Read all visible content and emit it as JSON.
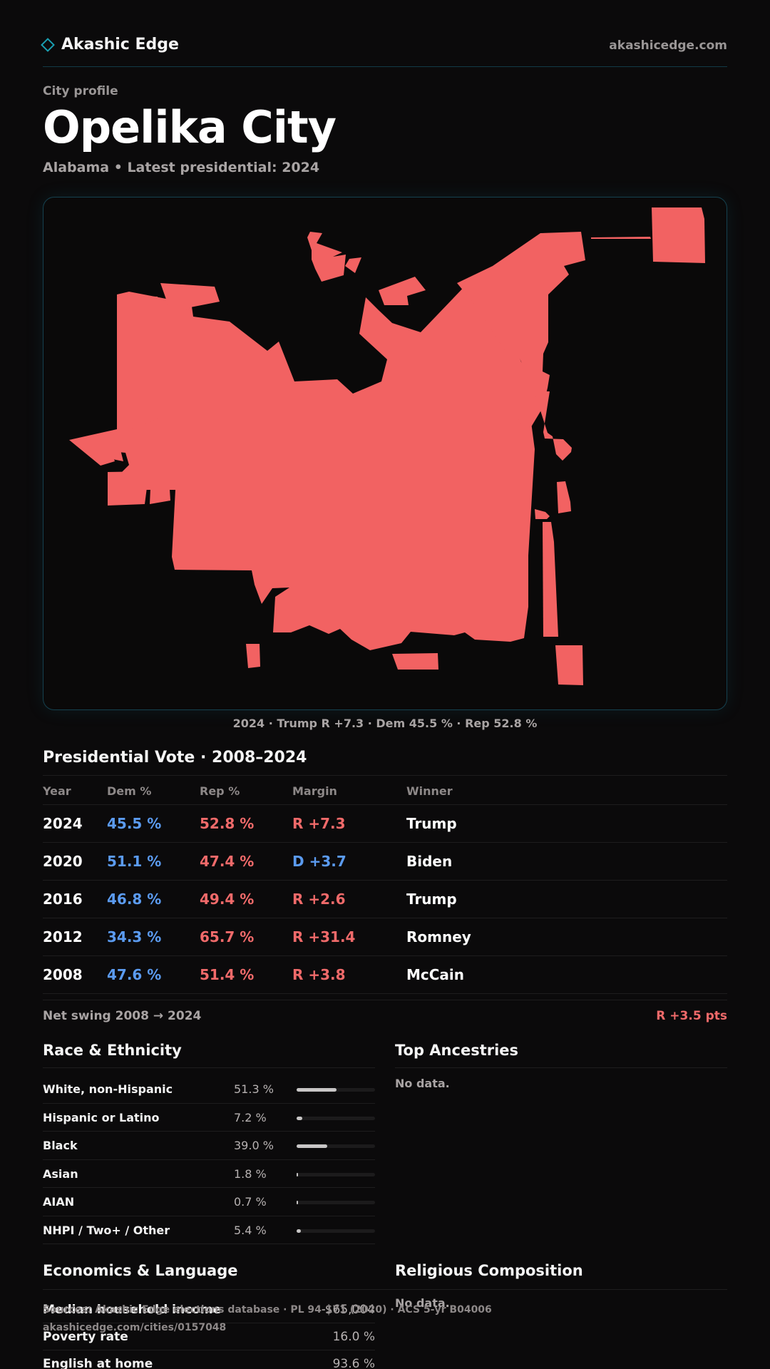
{
  "header": {
    "brand": "Akashic Edge",
    "domain": "akashicedge.com"
  },
  "profile": {
    "eyebrow": "City profile",
    "title": "Opelika City",
    "subtitle": "Alabama • Latest presidential: 2024"
  },
  "map": {
    "fill_color": "#f26262",
    "caption": "2024 · Trump R +7.3 · Dem 45.5 % · Rep 52.8 %"
  },
  "presidential": {
    "title": "Presidential Vote · 2008–2024",
    "columns": [
      "Year",
      "Dem %",
      "Rep %",
      "Margin",
      "Winner"
    ],
    "rows": [
      {
        "year": "2024",
        "dem": "45.5 %",
        "rep": "52.8 %",
        "margin": "R +7.3",
        "margin_party": "rep",
        "winner": "Trump"
      },
      {
        "year": "2020",
        "dem": "51.1 %",
        "rep": "47.4 %",
        "margin": "D +3.7",
        "margin_party": "dem",
        "winner": "Biden"
      },
      {
        "year": "2016",
        "dem": "46.8 %",
        "rep": "49.4 %",
        "margin": "R +2.6",
        "margin_party": "rep",
        "winner": "Trump"
      },
      {
        "year": "2012",
        "dem": "34.3 %",
        "rep": "65.7 %",
        "margin": "R +31.4",
        "margin_party": "rep",
        "winner": "Romney"
      },
      {
        "year": "2008",
        "dem": "47.6 %",
        "rep": "51.4 %",
        "margin": "R +3.8",
        "margin_party": "rep",
        "winner": "McCain"
      }
    ],
    "swing_label": "Net swing 2008 → 2024",
    "swing_value": "R +3.5 pts"
  },
  "race": {
    "title": "Race & Ethnicity",
    "rows": [
      {
        "label": "White, non-Hispanic",
        "pct": "51.3 %",
        "value": 51.3
      },
      {
        "label": "Hispanic or Latino",
        "pct": "7.2 %",
        "value": 7.2
      },
      {
        "label": "Black",
        "pct": "39.0 %",
        "value": 39.0
      },
      {
        "label": "Asian",
        "pct": "1.8 %",
        "value": 1.8
      },
      {
        "label": "AIAN",
        "pct": "0.7 %",
        "value": 0.7
      },
      {
        "label": "NHPI / Two+ / Other",
        "pct": "5.4 %",
        "value": 5.4
      }
    ]
  },
  "ancestries": {
    "title": "Top Ancestries",
    "empty": "No data."
  },
  "economics": {
    "title": "Economics & Language",
    "rows": [
      {
        "label": "Median household income",
        "value": "$65,004"
      },
      {
        "label": "Poverty rate",
        "value": "16.0 %"
      },
      {
        "label": "English at home",
        "value": "93.6 %"
      }
    ]
  },
  "religion": {
    "title": "Religious Composition",
    "empty": "No data."
  },
  "footer": {
    "sources": "Sources: Akashic Edge elections database · PL 94-171 (2020) · ACS 5-yr B04006",
    "url": "akashicedge.com/cities/0157048"
  }
}
